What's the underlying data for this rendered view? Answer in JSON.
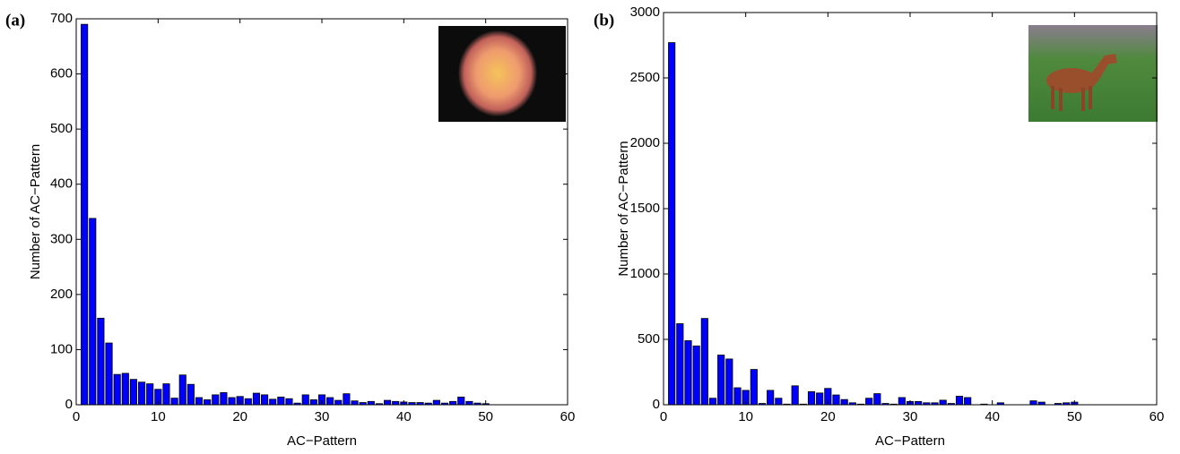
{
  "chart_data": [
    {
      "type": "bar",
      "panel_label": "(a)",
      "x_label": "AC−Pattern",
      "y_label": "Number of AC−Pattern",
      "color": "#0000ff",
      "x": [
        1,
        2,
        3,
        4,
        5,
        6,
        7,
        8,
        9,
        10,
        11,
        12,
        13,
        14,
        15,
        16,
        17,
        18,
        19,
        20,
        21,
        22,
        23,
        24,
        25,
        26,
        27,
        28,
        29,
        30,
        31,
        32,
        33,
        34,
        35,
        36,
        37,
        38,
        39,
        40,
        41,
        42,
        43,
        44,
        45,
        46,
        47,
        48,
        49,
        50
      ],
      "values": [
        690,
        338,
        157,
        112,
        55,
        57,
        46,
        41,
        38,
        28,
        38,
        12,
        54,
        37,
        13,
        9,
        18,
        22,
        13,
        15,
        11,
        21,
        18,
        10,
        14,
        11,
        3,
        18,
        9,
        18,
        13,
        8,
        20,
        7,
        4,
        6,
        2,
        8,
        6,
        5,
        4,
        4,
        3,
        8,
        3,
        6,
        14,
        6,
        3,
        2
      ],
      "xlim": [
        0,
        60
      ],
      "xticks": [
        0,
        10,
        20,
        30,
        40,
        50,
        60
      ],
      "ylim": [
        0,
        700
      ],
      "yticks": [
        0,
        100,
        200,
        300,
        400,
        500,
        600,
        700
      ]
    },
    {
      "type": "bar",
      "panel_label": "(b)",
      "x_label": "AC−Pattern",
      "y_label": "Number of AC−Pattern",
      "color": "#0000ff",
      "x": [
        1,
        2,
        3,
        4,
        5,
        6,
        7,
        8,
        9,
        10,
        11,
        12,
        13,
        14,
        15,
        16,
        17,
        18,
        19,
        20,
        21,
        22,
        23,
        24,
        25,
        26,
        27,
        28,
        29,
        30,
        31,
        32,
        33,
        34,
        35,
        36,
        37,
        38,
        39,
        40,
        41,
        42,
        43,
        44,
        45,
        46,
        47,
        48,
        49,
        50
      ],
      "values": [
        2770,
        620,
        490,
        450,
        660,
        50,
        380,
        350,
        130,
        110,
        270,
        10,
        110,
        50,
        5,
        145,
        5,
        100,
        90,
        125,
        75,
        40,
        15,
        5,
        50,
        85,
        10,
        5,
        55,
        25,
        25,
        15,
        15,
        35,
        10,
        65,
        55,
        0,
        5,
        0,
        15,
        0,
        0,
        0,
        30,
        20,
        0,
        10,
        15,
        20
      ],
      "xlim": [
        0,
        60
      ],
      "xticks": [
        0,
        10,
        20,
        30,
        40,
        50,
        60
      ],
      "ylim": [
        0,
        3000
      ],
      "yticks": [
        0,
        500,
        1000,
        1500,
        2000,
        2500,
        3000
      ]
    }
  ]
}
